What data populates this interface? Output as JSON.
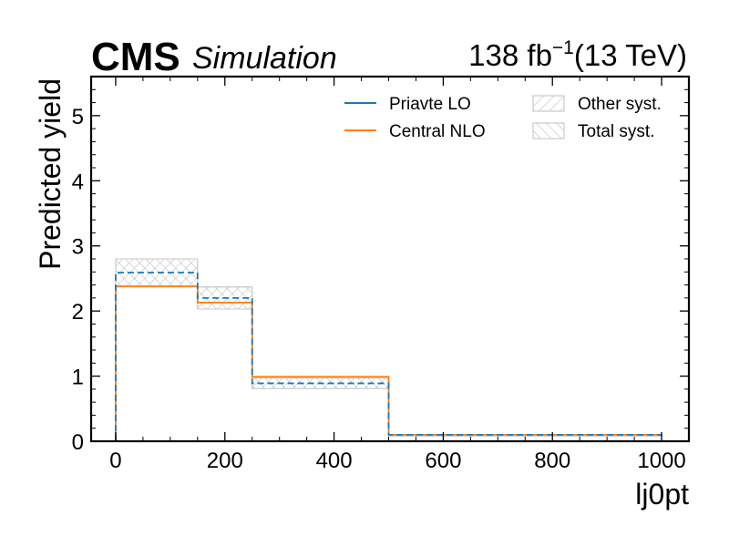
{
  "header": {
    "experiment": "CMS",
    "status": "Simulation",
    "lumi_value": "138 fb",
    "lumi_exponent": "−1",
    "lumi_energy": "(13 TeV)"
  },
  "colors": {
    "lo": "#1f77b4",
    "nlo": "#ff7f0e",
    "hatch": "#bfbfbf"
  },
  "chart_data": {
    "type": "step-histogram",
    "xlabel": "lj0pt",
    "ylabel": "Predicted yield",
    "xlim": [
      -45,
      1050
    ],
    "ylim": [
      0,
      5.6
    ],
    "xticks": [
      0,
      200,
      400,
      600,
      800,
      1000
    ],
    "yticks": [
      0,
      1,
      2,
      3,
      4,
      5
    ],
    "bin_edges": [
      0,
      150,
      250,
      500,
      1000
    ],
    "series": [
      {
        "name": "Priavte LO",
        "color": "#1f77b4",
        "values": [
          2.59,
          2.2,
          0.89,
          0.1
        ]
      },
      {
        "name": "Central NLO",
        "color": "#ff7f0e",
        "values": [
          2.38,
          2.13,
          0.99,
          0.1
        ]
      }
    ],
    "uncertainty_bands": [
      {
        "name": "Other syst.",
        "hatch": "////",
        "low": [
          2.37,
          2.03,
          0.81,
          0.1
        ],
        "high": [
          2.8,
          2.37,
          0.97,
          0.1
        ]
      },
      {
        "name": "Total syst.",
        "hatch": "\\\\\\\\",
        "low": [
          2.37,
          2.03,
          0.81,
          0.1
        ],
        "high": [
          2.8,
          2.37,
          0.97,
          0.1
        ]
      }
    ],
    "legend_position": "top-right",
    "grid": false
  }
}
